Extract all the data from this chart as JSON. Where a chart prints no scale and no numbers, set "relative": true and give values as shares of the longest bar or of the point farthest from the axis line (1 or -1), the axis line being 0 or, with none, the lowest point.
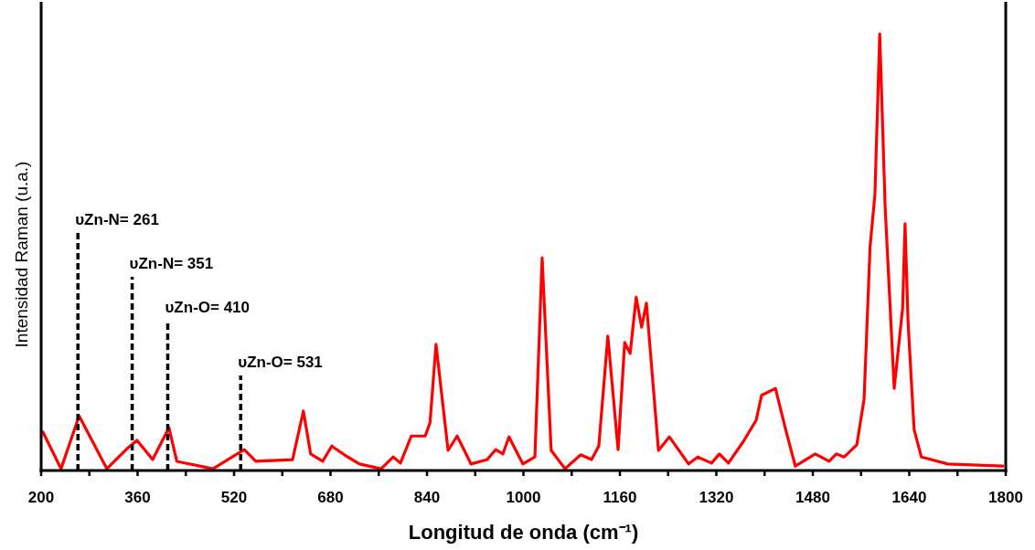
{
  "chart_data": {
    "type": "line",
    "relative": true,
    "xlabel": "Longitud de onda (cm⁻¹)",
    "ylabel": "Intensidad Raman (u.a.)",
    "xlim": [
      200,
      1800
    ],
    "xticks": [
      200,
      {
        "value": 280,
        "label": null
      },
      360,
      {
        "value": 440,
        "label": null
      },
      520,
      {
        "value": 600,
        "label": null
      },
      680,
      {
        "value": 760,
        "label": null
      },
      840,
      {
        "value": 920,
        "label": null
      },
      1000,
      {
        "value": 1080,
        "label": null
      },
      1160,
      {
        "value": 1240,
        "label": null
      },
      1320,
      {
        "value": 1400,
        "label": null
      },
      1480,
      {
        "value": 1560,
        "label": null
      },
      1640,
      {
        "value": 1720,
        "label": null
      },
      1800
    ],
    "grid": false,
    "marker": "none",
    "line_style": "solid",
    "series": [
      {
        "color": "#ff0000",
        "x": [
          203,
          233,
          263,
          309,
          344,
          359,
          385,
          412,
          425,
          485,
          537,
          556,
          617,
          635,
          647,
          667,
          682,
          703,
          728,
          764,
          784,
          796,
          814,
          837,
          845,
          855,
          875,
          890,
          913,
          940,
          954,
          966,
          976,
          999,
          1019,
          1031,
          1046,
          1069,
          1095,
          1113,
          1125,
          1140,
          1157,
          1168,
          1177,
          1187,
          1196,
          1204,
          1224,
          1242,
          1274,
          1289,
          1312,
          1325,
          1340,
          1365,
          1386,
          1395,
          1418,
          1436,
          1451,
          1484,
          1507,
          1519,
          1532,
          1553,
          1565,
          1575,
          1583,
          1591,
          1600,
          1615,
          1629,
          1633,
          1638,
          1648,
          1660,
          1704,
          1795
        ],
        "values": [
          0.088,
          0.004,
          0.125,
          0.004,
          0.052,
          0.069,
          0.025,
          0.098,
          0.021,
          0.004,
          0.048,
          0.021,
          0.025,
          0.136,
          0.038,
          0.021,
          0.056,
          0.036,
          0.015,
          0.004,
          0.031,
          0.017,
          0.079,
          0.079,
          0.109,
          0.289,
          0.046,
          0.079,
          0.015,
          0.025,
          0.048,
          0.038,
          0.077,
          0.015,
          0.031,
          0.487,
          0.046,
          0.004,
          0.036,
          0.025,
          0.056,
          0.308,
          0.048,
          0.293,
          0.268,
          0.397,
          0.328,
          0.383,
          0.046,
          0.077,
          0.015,
          0.031,
          0.017,
          0.038,
          0.017,
          0.067,
          0.115,
          0.172,
          0.188,
          0.088,
          0.01,
          0.038,
          0.021,
          0.038,
          0.031,
          0.059,
          0.163,
          0.513,
          0.632,
          1.0,
          0.603,
          0.188,
          0.372,
          0.565,
          0.339,
          0.094,
          0.031,
          0.015,
          0.01
        ]
      }
    ],
    "ref_lines": [
      {
        "axis": "x",
        "value": 261,
        "label": "υZn-N= 261",
        "color": "#000000",
        "line_style": "dashed"
      },
      {
        "axis": "x",
        "value": 351,
        "label": "υZn-N= 351",
        "color": "#000000",
        "line_style": "dashed"
      },
      {
        "axis": "x",
        "value": 410,
        "label": "υZn-O= 410",
        "color": "#000000",
        "line_style": "dashed"
      },
      {
        "axis": "x",
        "value": 531,
        "label": "υZn-O= 531",
        "color": "#000000",
        "line_style": "dashed"
      }
    ]
  }
}
